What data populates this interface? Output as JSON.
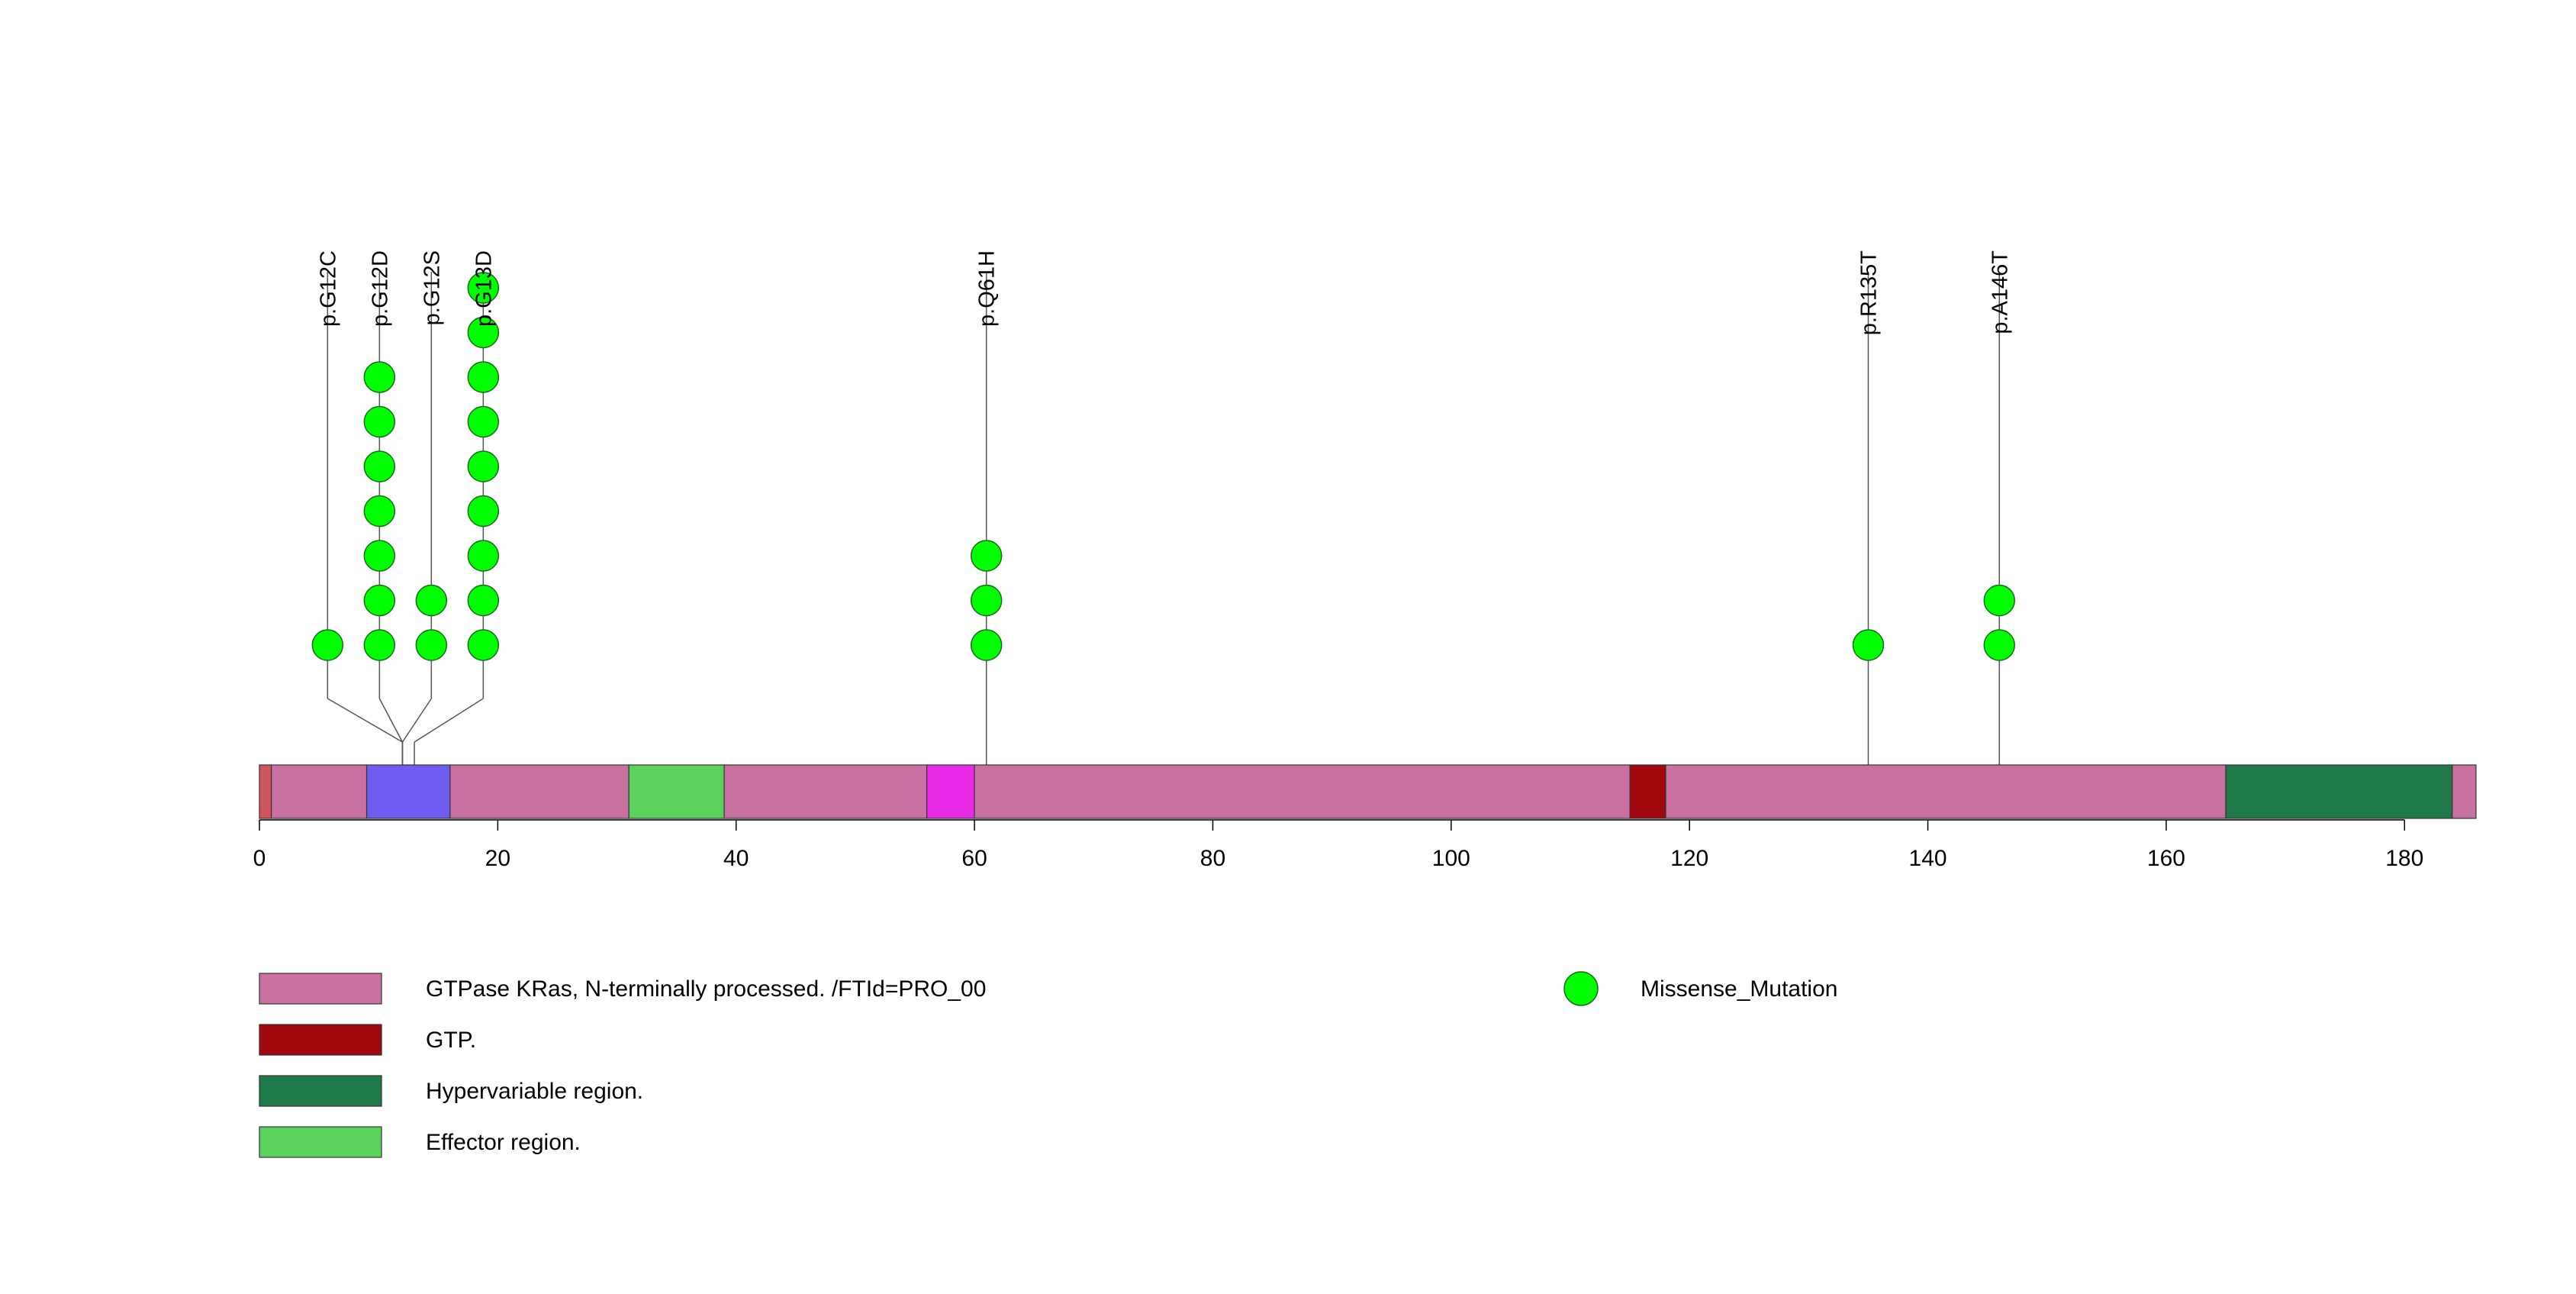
{
  "chart_data": {
    "type": "lollipop",
    "xlim": [
      0,
      186
    ],
    "x_ticks": [
      0,
      20,
      40,
      60,
      80,
      100,
      120,
      140,
      160,
      180
    ],
    "domains": [
      {
        "start": 0,
        "end": 1,
        "color": "#d0545e"
      },
      {
        "start": 1,
        "end": 9,
        "color": "#c971a1"
      },
      {
        "start": 9,
        "end": 16,
        "color": "#6e5cf0"
      },
      {
        "start": 16,
        "end": 31,
        "color": "#c971a1"
      },
      {
        "start": 31,
        "end": 39,
        "color": "#5cd15c"
      },
      {
        "start": 39,
        "end": 56,
        "color": "#c971a1"
      },
      {
        "start": 56,
        "end": 60,
        "color": "#e82ae8"
      },
      {
        "start": 60,
        "end": 115,
        "color": "#c971a1"
      },
      {
        "start": 115,
        "end": 118,
        "color": "#a0080e"
      },
      {
        "start": 118,
        "end": 165,
        "color": "#c971a1"
      },
      {
        "start": 165,
        "end": 184,
        "color": "#1f7a4a"
      },
      {
        "start": 184,
        "end": 186,
        "color": "#c971a1"
      }
    ],
    "mutations": [
      {
        "label": "p.G12C",
        "position": 12,
        "count": 1
      },
      {
        "label": "p.G12D",
        "position": 12,
        "count": 7
      },
      {
        "label": "p.G12S",
        "position": 12,
        "count": 2
      },
      {
        "label": "p.G13D",
        "position": 13,
        "count": 9
      },
      {
        "label": "p.Q61H",
        "position": 61,
        "count": 3
      },
      {
        "label": "p.R135T",
        "position": 135,
        "count": 1
      },
      {
        "label": "p.A146T",
        "position": 146,
        "count": 2
      }
    ],
    "legend_left": [
      {
        "label": "GTPase KRas, N-terminally processed. /FTId=PRO_00",
        "color": "#c971a1"
      },
      {
        "label": "GTP.",
        "color": "#a0080e"
      },
      {
        "label": "Hypervariable region.",
        "color": "#1f7a4a"
      },
      {
        "label": "Effector region.",
        "color": "#5cd15c"
      }
    ],
    "legend_right": [
      {
        "label": "Missense_Mutation",
        "color": "#00ff00"
      }
    ]
  }
}
